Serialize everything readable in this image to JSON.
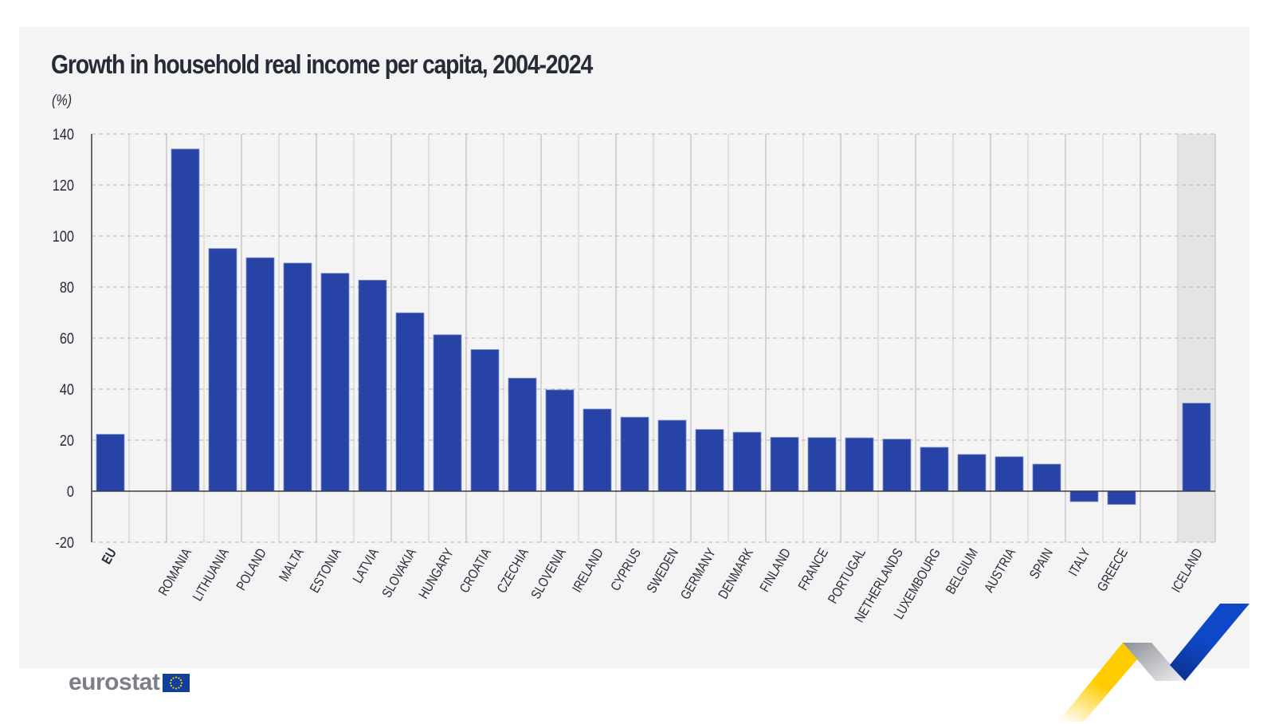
{
  "header": {
    "title": "Growth in household real income per capita, 2004-2024",
    "unit": "(%)"
  },
  "branding": {
    "logo_text": "eurostat",
    "flag_icon": "eu-flag-icon"
  },
  "colors": {
    "bar": "#2743a5",
    "bar_edge": "#7f93d0",
    "highlight_band": "#e4e4e4",
    "panel": "#f4f4f4",
    "text": "#262b38"
  },
  "chart_data": {
    "type": "bar",
    "title": "Growth in household real income per capita, 2004-2024",
    "xlabel": "",
    "ylabel": "(%)",
    "ylim": [
      -20,
      140
    ],
    "yticks": [
      140,
      120,
      100,
      80,
      60,
      40,
      20,
      0,
      -20
    ],
    "grid": true,
    "legend": "none",
    "categories": [
      "EU",
      "",
      "ROMANIA",
      "LITHUANIA",
      "POLAND",
      "MALTA",
      "ESTONIA",
      "LATVIA",
      "SLOVAKIA",
      "HUNGARY",
      "CROATIA",
      "CZECHIA",
      "SLOVENIA",
      "IRELAND",
      "CYPRUS",
      "SWEDEN",
      "GERMANY",
      "DENMARK",
      "FINLAND",
      "FRANCE",
      "PORTUGAL",
      "NETHERLANDS",
      "LUXEMBOURG",
      "BELGIUM",
      "AUSTRIA",
      "SPAIN",
      "ITALY",
      "GREECE",
      "",
      "ICELAND"
    ],
    "values": [
      22.3,
      null,
      134.1,
      95.1,
      91.5,
      89.4,
      85.4,
      82.7,
      69.9,
      61.3,
      55.5,
      44.3,
      39.7,
      32.2,
      29.0,
      27.8,
      24.2,
      23.1,
      21.1,
      21.0,
      20.9,
      20.4,
      17.2,
      14.4,
      13.5,
      10.6,
      -4.1,
      -5.2,
      null,
      34.5
    ],
    "bold_categories": [
      "EU"
    ],
    "highlighted_categories": [
      "ICELAND"
    ]
  }
}
